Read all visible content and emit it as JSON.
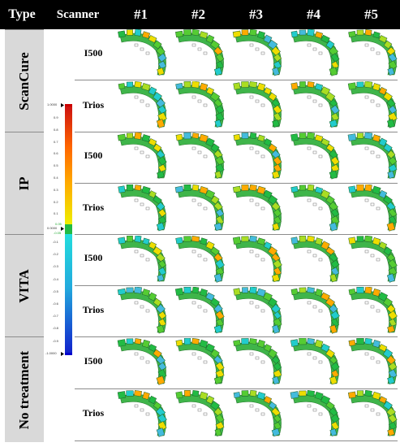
{
  "header": {
    "type": "Type",
    "scanner": "Scanner",
    "cols": [
      "#1",
      "#2",
      "#3",
      "#4",
      "#5"
    ]
  },
  "groups": [
    {
      "type": "ScanCure",
      "scanners": [
        "I500",
        "Trios"
      ]
    },
    {
      "type": "IP",
      "scanners": [
        "I500",
        "Trios"
      ]
    },
    {
      "type": "VITA",
      "scanners": [
        "I500",
        "Trios"
      ]
    },
    {
      "type": "No treatment",
      "scanners": [
        "I500",
        "Trios"
      ]
    }
  ],
  "legend": {
    "max_label": "1.0000",
    "zero_label": "0.0000",
    "min_label": "-1.0000",
    "tol_pos": "0.05",
    "tol_neg": "-0.05",
    "pos_ticks": [
      "0.9",
      "0.8",
      "0.7",
      "0.6",
      "0.5",
      "0.4",
      "0.3",
      "0.2",
      "0.1"
    ],
    "neg_ticks": [
      "-0.1",
      "-0.2",
      "-0.3",
      "-0.4",
      "-0.5",
      "-0.6",
      "-0.7",
      "-0.8",
      "-0.9"
    ],
    "colors": {
      "max": "#cc0000",
      "warm": "#ff8800",
      "yellow": "#eedd00",
      "green": "#22bb44",
      "cyan": "#22cccc",
      "blue": "#1144dd",
      "min": "#0000cc"
    }
  }
}
